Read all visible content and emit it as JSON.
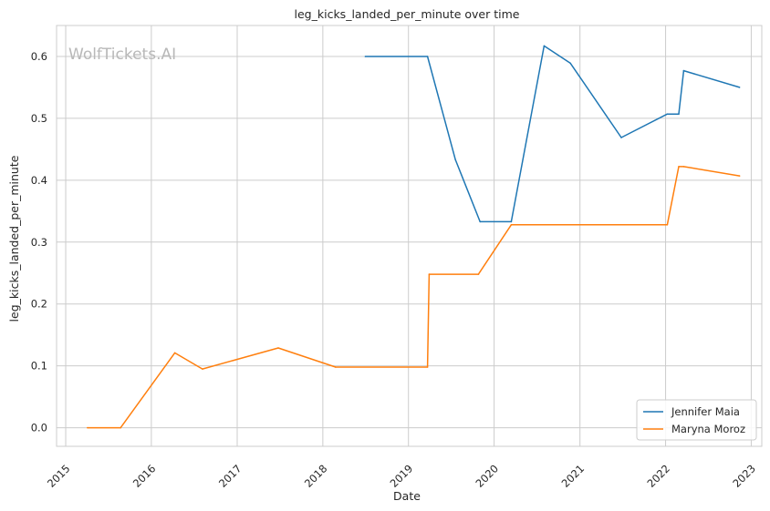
{
  "watermark": "WolfTickets.AI",
  "chart_data": {
    "type": "line",
    "title": "leg_kicks_landed_per_minute over time",
    "xlabel": "Date",
    "ylabel": "leg_kicks_landed_per_minute",
    "x_type": "date",
    "xlim": [
      "2014-11-23",
      "2023-02-15"
    ],
    "ylim": [
      -0.03,
      0.65
    ],
    "x_ticks": [
      "2015",
      "2016",
      "2017",
      "2018",
      "2019",
      "2020",
      "2021",
      "2022",
      "2023"
    ],
    "y_ticks": [
      "0.0",
      "0.1",
      "0.2",
      "0.3",
      "0.4",
      "0.5",
      "0.6"
    ],
    "grid": true,
    "legend_position": "bottom-right",
    "series": [
      {
        "name": "Jennifer Maia",
        "color": "#1f77b4",
        "points": [
          [
            "2018-07-01",
            0.6
          ],
          [
            "2019-03-23",
            0.6
          ],
          [
            "2019-07-20",
            0.433
          ],
          [
            "2019-11-02",
            0.333
          ],
          [
            "2020-03-14",
            0.333
          ],
          [
            "2020-08-01",
            0.617
          ],
          [
            "2020-11-21",
            0.589
          ],
          [
            "2021-06-26",
            0.469
          ],
          [
            "2022-01-08",
            0.507
          ],
          [
            "2022-02-26",
            0.507
          ],
          [
            "2022-03-19",
            0.577
          ],
          [
            "2022-11-12",
            0.55
          ]
        ]
      },
      {
        "name": "Maryna Moroz",
        "color": "#ff7f0e",
        "points": [
          [
            "2015-04-04",
            0.0
          ],
          [
            "2015-08-23",
            0.0
          ],
          [
            "2016-04-10",
            0.121
          ],
          [
            "2016-08-06",
            0.095
          ],
          [
            "2017-06-25",
            0.129
          ],
          [
            "2018-02-24",
            0.098
          ],
          [
            "2019-03-23",
            0.098
          ],
          [
            "2019-03-30",
            0.248
          ],
          [
            "2019-10-26",
            0.248
          ],
          [
            "2020-03-14",
            0.328
          ],
          [
            "2022-01-08",
            0.328
          ],
          [
            "2022-02-26",
            0.422
          ],
          [
            "2022-03-19",
            0.422
          ],
          [
            "2022-11-12",
            0.407
          ]
        ]
      }
    ]
  }
}
